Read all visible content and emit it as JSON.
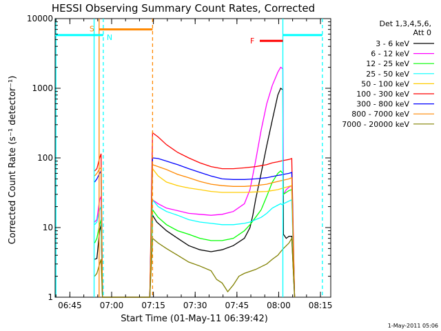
{
  "chart_data": {
    "type": "line",
    "title": "HESSI Observing Summary Count Rates, Corrected",
    "xlabel": "Start Time (01-May-11 06:39:42)",
    "ylabel": "Corrected Count Rate (s⁻¹ detector⁻¹)",
    "x_unit": "minutes after 06:39:42",
    "xlim": [
      0,
      99
    ],
    "x_ticks": [
      {
        "x": 5.3,
        "label": "06:45"
      },
      {
        "x": 20.3,
        "label": "07:00"
      },
      {
        "x": 35.3,
        "label": "07:15"
      },
      {
        "x": 50.3,
        "label": "07:30"
      },
      {
        "x": 65.3,
        "label": "07:45"
      },
      {
        "x": 80.3,
        "label": "08:00"
      },
      {
        "x": 95.3,
        "label": "08:15"
      }
    ],
    "y_scale": "log",
    "ylim": [
      1,
      10000
    ],
    "y_ticks": [
      {
        "y": 1,
        "label": "1"
      },
      {
        "y": 10,
        "label": "10"
      },
      {
        "y": 100,
        "label": "100"
      },
      {
        "y": 1000,
        "label": "1000"
      },
      {
        "y": 10000,
        "label": "10000"
      }
    ],
    "legend": {
      "header": [
        "Det 1,3,4,5,6,",
        "Att 0"
      ],
      "position": "right"
    },
    "series": [
      {
        "name": "3 - 6 keV",
        "color": "#000000",
        "points": [
          [
            14.2,
            3.5
          ],
          [
            15,
            3.6
          ],
          [
            16,
            9
          ],
          [
            16.5,
            11
          ],
          [
            17,
            0
          ],
          [
            34,
            0
          ],
          [
            35,
            15
          ],
          [
            36.5,
            12
          ],
          [
            40,
            9
          ],
          [
            44,
            7
          ],
          [
            48,
            5.5
          ],
          [
            52,
            4.8
          ],
          [
            56,
            4.5
          ],
          [
            60,
            4.8
          ],
          [
            64,
            5.5
          ],
          [
            68,
            7
          ],
          [
            70,
            10
          ],
          [
            71,
            15
          ],
          [
            72,
            25
          ],
          [
            74,
            60
          ],
          [
            76,
            150
          ],
          [
            78,
            350
          ],
          [
            80,
            800
          ],
          [
            81,
            1000
          ],
          [
            81.8,
            950
          ],
          [
            82,
            8
          ],
          [
            83,
            7
          ],
          [
            84,
            7.5
          ],
          [
            85,
            7.5
          ],
          [
            86,
            0
          ]
        ]
      },
      {
        "name": "6 - 12 keV",
        "color": "#ff00ff",
        "points": [
          [
            14.2,
            12
          ],
          [
            15,
            13
          ],
          [
            16,
            25
          ],
          [
            16.5,
            28
          ],
          [
            17,
            0
          ],
          [
            34,
            0
          ],
          [
            35,
            25
          ],
          [
            37,
            22
          ],
          [
            40,
            19
          ],
          [
            44,
            17.5
          ],
          [
            48,
            16
          ],
          [
            52,
            15.5
          ],
          [
            56,
            15
          ],
          [
            60,
            15.5
          ],
          [
            64,
            17
          ],
          [
            68,
            22
          ],
          [
            70,
            35
          ],
          [
            72,
            90
          ],
          [
            74,
            250
          ],
          [
            76,
            600
          ],
          [
            78,
            1100
          ],
          [
            80,
            1700
          ],
          [
            81,
            2000
          ],
          [
            81.8,
            1900
          ],
          [
            82,
            30
          ],
          [
            83,
            35
          ],
          [
            84,
            38
          ],
          [
            85,
            40
          ],
          [
            86,
            0
          ]
        ]
      },
      {
        "name": "12 - 25 keV",
        "color": "#00ff00",
        "points": [
          [
            14.2,
            6
          ],
          [
            15,
            7
          ],
          [
            16,
            11
          ],
          [
            16.5,
            13
          ],
          [
            17,
            0
          ],
          [
            34,
            0
          ],
          [
            35,
            18
          ],
          [
            37,
            14
          ],
          [
            40,
            11
          ],
          [
            44,
            9
          ],
          [
            48,
            8
          ],
          [
            52,
            7
          ],
          [
            56,
            6.5
          ],
          [
            60,
            6.5
          ],
          [
            64,
            7
          ],
          [
            68,
            9
          ],
          [
            70,
            11
          ],
          [
            72,
            14
          ],
          [
            74,
            18
          ],
          [
            76,
            28
          ],
          [
            78,
            45
          ],
          [
            80,
            60
          ],
          [
            81,
            65
          ],
          [
            81.8,
            60
          ],
          [
            82,
            30
          ],
          [
            83,
            32
          ],
          [
            84,
            34
          ],
          [
            85,
            35
          ],
          [
            86,
            0
          ]
        ]
      },
      {
        "name": "25 - 50 keV",
        "color": "#00ffff",
        "points": [
          [
            14.2,
            11
          ],
          [
            15,
            12
          ],
          [
            16,
            18
          ],
          [
            16.5,
            20
          ],
          [
            17,
            0
          ],
          [
            34,
            0
          ],
          [
            35,
            25
          ],
          [
            37,
            20
          ],
          [
            40,
            17
          ],
          [
            44,
            15
          ],
          [
            48,
            13
          ],
          [
            52,
            12
          ],
          [
            56,
            11.5
          ],
          [
            60,
            11
          ],
          [
            64,
            11
          ],
          [
            68,
            11.5
          ],
          [
            70,
            12
          ],
          [
            72,
            13
          ],
          [
            74,
            14
          ],
          [
            76,
            16
          ],
          [
            78,
            19
          ],
          [
            80,
            21
          ],
          [
            81,
            22
          ],
          [
            81.8,
            21
          ],
          [
            82,
            22
          ],
          [
            83,
            23
          ],
          [
            84,
            24
          ],
          [
            85,
            25
          ],
          [
            86,
            0
          ]
        ]
      },
      {
        "name": "50 - 100 keV",
        "color": "#ffcc00",
        "points": [
          [
            34,
            0
          ],
          [
            35,
            70
          ],
          [
            37,
            55
          ],
          [
            40,
            45
          ],
          [
            44,
            40
          ],
          [
            48,
            37
          ],
          [
            52,
            35
          ],
          [
            56,
            33
          ],
          [
            60,
            32
          ],
          [
            64,
            32
          ],
          [
            68,
            32
          ],
          [
            72,
            32.5
          ],
          [
            76,
            33
          ],
          [
            78,
            34
          ],
          [
            80,
            35
          ],
          [
            81,
            36
          ],
          [
            82,
            37
          ],
          [
            84,
            39
          ],
          [
            85,
            40
          ],
          [
            86,
            0
          ]
        ]
      },
      {
        "name": "100 - 300 keV",
        "color": "#ff0000",
        "points": [
          [
            14.2,
            65
          ],
          [
            15,
            70
          ],
          [
            16,
            100
          ],
          [
            16.5,
            115
          ],
          [
            17,
            0
          ],
          [
            34,
            0
          ],
          [
            35,
            230
          ],
          [
            37,
            200
          ],
          [
            40,
            155
          ],
          [
            44,
            120
          ],
          [
            48,
            100
          ],
          [
            52,
            85
          ],
          [
            56,
            75
          ],
          [
            60,
            70
          ],
          [
            64,
            70
          ],
          [
            68,
            72
          ],
          [
            72,
            75
          ],
          [
            76,
            80
          ],
          [
            78,
            85
          ],
          [
            80,
            88
          ],
          [
            81,
            90
          ],
          [
            82,
            92
          ],
          [
            84,
            95
          ],
          [
            85,
            98
          ],
          [
            86,
            0
          ]
        ]
      },
      {
        "name": "300 - 800 keV",
        "color": "#0000ff",
        "points": [
          [
            14.2,
            45
          ],
          [
            15,
            50
          ],
          [
            16,
            60
          ],
          [
            16.5,
            65
          ],
          [
            17,
            0
          ],
          [
            34,
            0
          ],
          [
            35,
            100
          ],
          [
            37,
            98
          ],
          [
            40,
            90
          ],
          [
            44,
            80
          ],
          [
            48,
            70
          ],
          [
            52,
            62
          ],
          [
            56,
            55
          ],
          [
            60,
            50
          ],
          [
            64,
            49
          ],
          [
            68,
            49
          ],
          [
            72,
            50
          ],
          [
            76,
            52
          ],
          [
            78,
            54
          ],
          [
            80,
            56
          ],
          [
            81,
            57
          ],
          [
            82,
            58
          ],
          [
            84,
            60
          ],
          [
            85,
            62
          ],
          [
            86,
            0
          ]
        ]
      },
      {
        "name": "800 - 7000 keV",
        "color": "#ff8800",
        "points": [
          [
            14.2,
            55
          ],
          [
            15,
            60
          ],
          [
            16,
            70
          ],
          [
            16.5,
            72
          ],
          [
            17,
            0
          ],
          [
            34,
            0
          ],
          [
            35,
            80
          ],
          [
            37,
            75
          ],
          [
            40,
            68
          ],
          [
            44,
            58
          ],
          [
            48,
            52
          ],
          [
            52,
            46
          ],
          [
            56,
            42
          ],
          [
            60,
            40
          ],
          [
            64,
            39
          ],
          [
            68,
            39
          ],
          [
            72,
            40
          ],
          [
            76,
            42
          ],
          [
            78,
            44
          ],
          [
            80,
            46
          ],
          [
            81,
            47
          ],
          [
            82,
            48
          ],
          [
            84,
            50
          ],
          [
            85,
            52
          ],
          [
            86,
            0
          ]
        ]
      },
      {
        "name": "7000 - 20000 keV",
        "color": "#808000",
        "points": [
          [
            14.2,
            2
          ],
          [
            15,
            2.2
          ],
          [
            16,
            3
          ],
          [
            16.5,
            3.5
          ],
          [
            17,
            0
          ],
          [
            34,
            0
          ],
          [
            35,
            7
          ],
          [
            37,
            6
          ],
          [
            40,
            5
          ],
          [
            44,
            4
          ],
          [
            48,
            3.2
          ],
          [
            52,
            2.8
          ],
          [
            56,
            2.4
          ],
          [
            58,
            1.8
          ],
          [
            60,
            1.6
          ],
          [
            62,
            1.2
          ],
          [
            64,
            1.5
          ],
          [
            66,
            2
          ],
          [
            68,
            2.2
          ],
          [
            72,
            2.5
          ],
          [
            76,
            3
          ],
          [
            78,
            3.5
          ],
          [
            80,
            4
          ],
          [
            81,
            4.5
          ],
          [
            82,
            5
          ],
          [
            84,
            6
          ],
          [
            85,
            7
          ],
          [
            86,
            0
          ]
        ]
      }
    ],
    "annotations": {
      "s_label": "S",
      "n_label": "N",
      "f_label": "F",
      "saa_bar": {
        "x": [
          15.8,
          35.0
        ],
        "y": 7000,
        "color": "#ff8800"
      },
      "flare_bar": {
        "x": [
          73.5,
          81.8
        ],
        "y": 4800,
        "color": "#ff0000"
      },
      "night_bars": [
        {
          "x": [
            0,
            17.3
          ],
          "y": 5800,
          "color": "#00ffff"
        },
        {
          "x": [
            81.8,
            96.0
          ],
          "y": 5800,
          "color": "#00ffff"
        }
      ],
      "vertical_markers": [
        {
          "x": 0.3,
          "color": "#00ffff",
          "style": "solid"
        },
        {
          "x": 14.0,
          "color": "#00ffff",
          "style": "solid"
        },
        {
          "x": 15.8,
          "color": "#ff8800",
          "style": "solid"
        },
        {
          "x": 17.3,
          "color": "#00ffff",
          "style": "dashed"
        },
        {
          "x": 35.0,
          "color": "#ff8800",
          "style": "dashed"
        },
        {
          "x": 81.8,
          "color": "#00ffff",
          "style": "solid"
        },
        {
          "x": 96.0,
          "color": "#00ffff",
          "style": "dashed"
        }
      ]
    }
  },
  "footer": {
    "timestamp": "1-May-2011 05:06"
  }
}
